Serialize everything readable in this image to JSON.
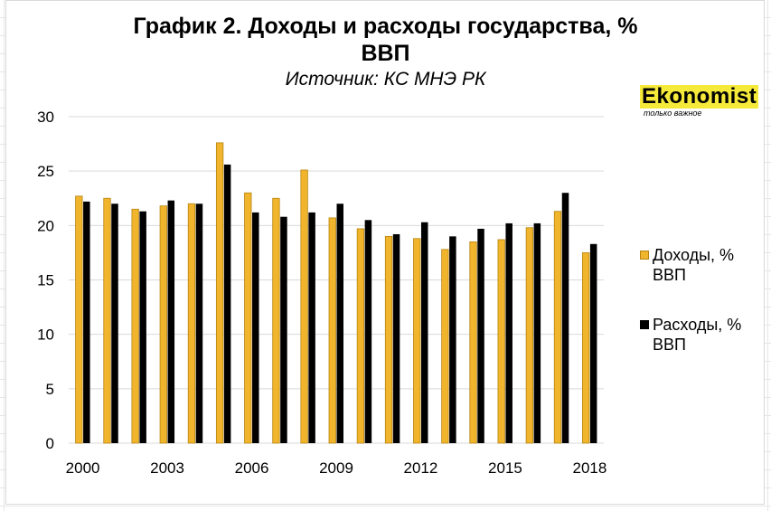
{
  "title_line1": "График 2. Доходы и расходы государства, %",
  "title_line2": "ВВП",
  "subtitle": "Источник: КС МНЭ РК",
  "logo": {
    "name": "Ekonomist",
    "tagline": "только важное"
  },
  "colors": {
    "income": "#f0b52c",
    "income_border": "#b88410",
    "expense": "#000000",
    "gridline": "#d9d9d9"
  },
  "chart_data": {
    "type": "bar",
    "title": "График 2. Доходы и расходы государства, % ВВП",
    "categories": [
      "2000",
      "2001",
      "2002",
      "2003",
      "2004",
      "2005",
      "2006",
      "2007",
      "2008",
      "2009",
      "2010",
      "2011",
      "2012",
      "2013",
      "2014",
      "2015",
      "2016",
      "2017",
      "2018"
    ],
    "x_tick_labels": [
      "2000",
      "2003",
      "2006",
      "2009",
      "2012",
      "2015",
      "2018"
    ],
    "series": [
      {
        "name": "Доходы, % ВВП",
        "values": [
          22.7,
          22.5,
          21.5,
          21.8,
          22.0,
          27.6,
          23.0,
          22.5,
          25.1,
          20.7,
          19.7,
          19.0,
          18.8,
          17.8,
          18.5,
          18.7,
          19.8,
          21.3,
          17.5
        ]
      },
      {
        "name": "Расходы, % ВВП",
        "values": [
          22.2,
          22.0,
          21.3,
          22.3,
          22.0,
          25.6,
          21.2,
          20.8,
          21.2,
          22.0,
          20.5,
          19.2,
          20.3,
          19.0,
          19.7,
          20.2,
          20.2,
          23.0,
          18.3
        ]
      }
    ],
    "ylim": [
      0,
      30
    ],
    "y_ticks": [
      0,
      5,
      10,
      15,
      20,
      25,
      30
    ],
    "grid": true,
    "legend_position": "right"
  },
  "legend": {
    "income_line1": "Доходы, %",
    "income_line2": "ВВП",
    "expense_line1": "Расходы, %",
    "expense_line2": "ВВП"
  }
}
